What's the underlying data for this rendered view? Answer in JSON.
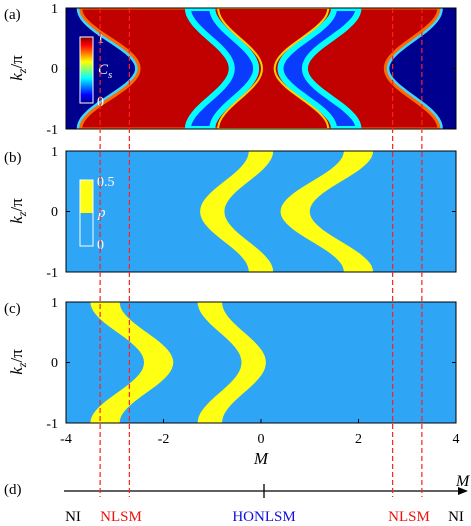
{
  "panels": [
    {
      "label": "(a)",
      "ylabel_main": "k",
      "ylabel_sub": "z",
      "ylabel_tail": "/π",
      "yticks": [
        "1",
        "0",
        "-1"
      ],
      "colorbar": {
        "max": "1",
        "min": "0",
        "symbol": "C",
        "symbol_sub": "s"
      }
    },
    {
      "label": "(b)",
      "ylabel_main": "k",
      "ylabel_sub": "z",
      "ylabel_tail": "/π",
      "yticks": [
        "1",
        "0",
        "-1"
      ],
      "colorbar": {
        "max": "0.5",
        "min": "0",
        "symbol": "p"
      }
    },
    {
      "label": "(c)",
      "ylabel_main": "k",
      "ylabel_sub": "z",
      "ylabel_tail": "/π",
      "yticks": [
        "1",
        "0",
        "-1"
      ]
    }
  ],
  "xaxis": {
    "label": "M",
    "ticks": [
      "-4",
      "-2",
      "0",
      "2",
      "4"
    ]
  },
  "phase_panel": {
    "label": "(d)",
    "axis_label": "M",
    "phases": [
      {
        "name": "NI",
        "color": "#000000"
      },
      {
        "name": "NLSM",
        "color": "#ee1111"
      },
      {
        "name": "HONLSM",
        "color": "#1111dd"
      },
      {
        "name": "NLSM",
        "color": "#ee1111"
      },
      {
        "name": "NI",
        "color": "#000000"
      }
    ]
  },
  "colors": {
    "phase_bg_blue": "#2ea6f5",
    "phase_yellow": "#ffff14",
    "cs_background": "#00008f",
    "cs_filled": "#c10000",
    "boundary_line": "#ff2020"
  },
  "chart_data": {
    "type": "heatmap",
    "x_range": [
      -4,
      4
    ],
    "y_range": [
      -1,
      1
    ],
    "x_tick_values": [
      -4,
      -2,
      0,
      2,
      4
    ],
    "y_tick_values": [
      -1,
      0,
      1
    ],
    "phase_boundaries_M": [
      -3.3,
      -2.7,
      2.7,
      3.3
    ],
    "critical_point_M": 0
  }
}
